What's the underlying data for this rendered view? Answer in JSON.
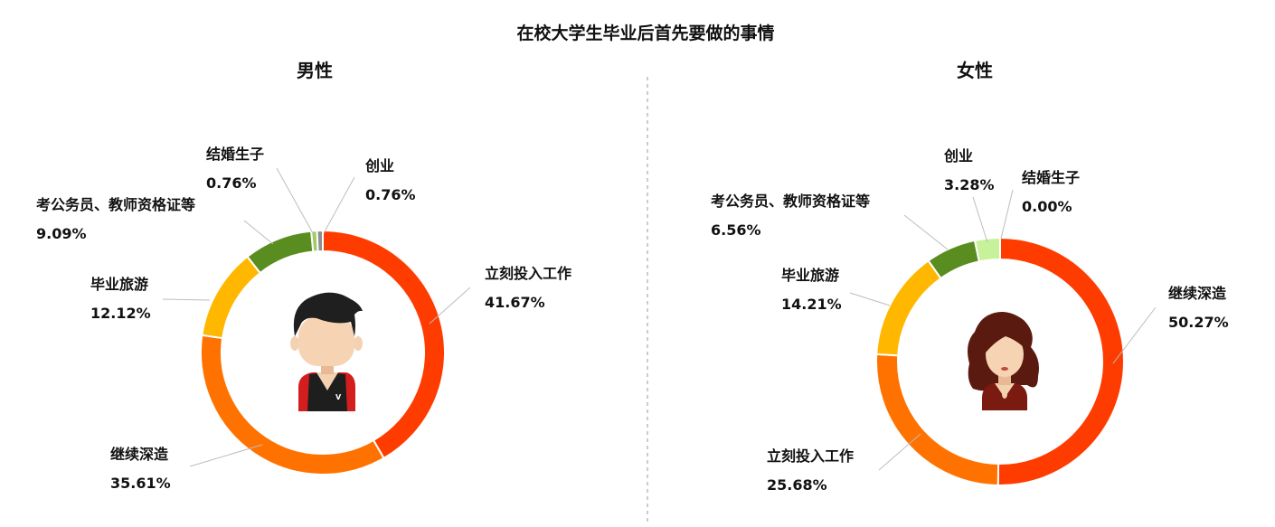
{
  "title": "在校大学生毕业后首先要做的事情",
  "chart_data": [
    {
      "type": "pie",
      "subtitle": "男性",
      "slices": [
        {
          "label": "立刻投入工作",
          "pct_text": "41.67%",
          "value": 41.67,
          "color": "#FF3C00"
        },
        {
          "label": "继续深造",
          "pct_text": "35.61%",
          "value": 35.61,
          "color": "#FF7200"
        },
        {
          "label": "毕业旅游",
          "pct_text": "12.12%",
          "value": 12.12,
          "color": "#FFB700"
        },
        {
          "label": "考公务员、教师资格证等",
          "pct_text": "9.09%",
          "value": 9.09,
          "color": "#5A8D1F"
        },
        {
          "label": "结婚生子",
          "pct_text": "0.76%",
          "value": 0.76,
          "color": "#9DCC6A"
        },
        {
          "label": "创业",
          "pct_text": "0.76%",
          "value": 0.76,
          "color": "#8E8E8E"
        }
      ],
      "avatar": "male-avatar-icon"
    },
    {
      "type": "pie",
      "subtitle": "女性",
      "slices": [
        {
          "label": "继续深造",
          "pct_text": "50.27%",
          "value": 50.27,
          "color": "#FF3C00"
        },
        {
          "label": "立刻投入工作",
          "pct_text": "25.68%",
          "value": 25.68,
          "color": "#FF7200"
        },
        {
          "label": "毕业旅游",
          "pct_text": "14.21%",
          "value": 14.21,
          "color": "#FFB700"
        },
        {
          "label": "考公务员、教师资格证等",
          "pct_text": "6.56%",
          "value": 6.56,
          "color": "#5A8D1F"
        },
        {
          "label": "创业",
          "pct_text": "3.28%",
          "value": 3.28,
          "color": "#C8F29A"
        },
        {
          "label": "结婚生子",
          "pct_text": "0.00%",
          "value": 0.0,
          "color": "#C8F29A"
        }
      ],
      "avatar": "female-avatar-icon"
    }
  ]
}
